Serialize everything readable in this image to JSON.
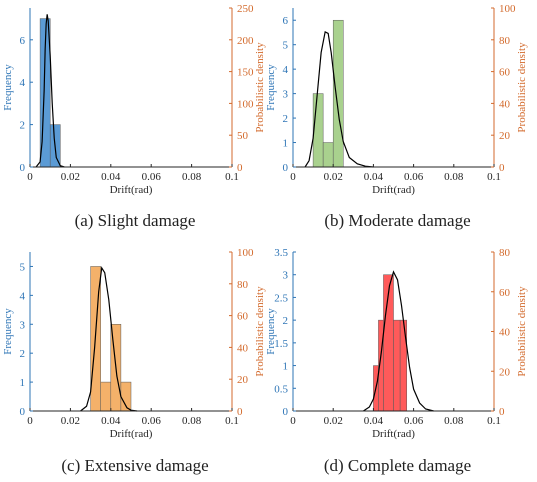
{
  "colors": {
    "left_axis": "#2e75b6",
    "right_axis": "#d36a2c",
    "curve": "#000000",
    "axis": "#262626"
  },
  "chart_data": [
    {
      "type": "bar",
      "caption": "(a) Slight damage",
      "xlabel": "Drift(rad)",
      "ylabel": "Frequency",
      "ylabel_right": "Probabilistic density",
      "xlim": [
        0,
        0.1
      ],
      "ylim": [
        0,
        7.5
      ],
      "ylim_right": [
        0,
        250
      ],
      "xticks": [
        "0",
        "0.02",
        "0.04",
        "0.06",
        "0.08",
        "0.1"
      ],
      "yticks": [
        "0",
        "2",
        "4",
        "6"
      ],
      "yticks_right": [
        "0",
        "50",
        "100",
        "150",
        "200",
        "250"
      ],
      "bar_color": "#5b9bd5",
      "bin_edges": [
        0.005,
        0.01,
        0.015
      ],
      "values": [
        7,
        2
      ],
      "pdf_curve": {
        "x": [
          0.003,
          0.005,
          0.006,
          0.007,
          0.0075,
          0.008,
          0.0085,
          0.009,
          0.01,
          0.011,
          0.012,
          0.013,
          0.015,
          0.017
        ],
        "y": [
          0,
          8,
          40,
          120,
          185,
          225,
          240,
          230,
          175,
          100,
          45,
          15,
          2,
          0
        ]
      }
    },
    {
      "type": "bar",
      "caption": "(b) Moderate damage",
      "xlabel": "Drift(rad)",
      "ylabel": "Frequency",
      "ylabel_right": "Probabilistic density",
      "xlim": [
        0,
        0.1
      ],
      "ylim": [
        0,
        6.5
      ],
      "ylim_right": [
        0,
        100
      ],
      "xticks": [
        "0",
        "0.02",
        "0.04",
        "0.06",
        "0.08",
        "0.1"
      ],
      "yticks": [
        "0",
        "1",
        "2",
        "3",
        "4",
        "5",
        "6"
      ],
      "yticks_right": [
        "0",
        "20",
        "40",
        "60",
        "80",
        "100"
      ],
      "bar_color": "#a9d18e",
      "bin_edges": [
        0.01,
        0.015,
        0.02,
        0.025
      ],
      "values": [
        3,
        1,
        6
      ],
      "pdf_curve": {
        "x": [
          0.006,
          0.008,
          0.01,
          0.012,
          0.014,
          0.016,
          0.0175,
          0.019,
          0.021,
          0.023,
          0.025,
          0.028,
          0.032,
          0.036,
          0.04
        ],
        "y": [
          0,
          4,
          18,
          45,
          72,
          85,
          84,
          72,
          50,
          30,
          16,
          6,
          2,
          0.5,
          0
        ]
      }
    },
    {
      "type": "bar",
      "caption": "(c) Extensive damage",
      "xlabel": "Drift(rad)",
      "ylabel": "Frequency",
      "ylabel_right": "Probabilistic density",
      "xlim": [
        0,
        0.1
      ],
      "ylim": [
        0,
        5.5
      ],
      "ylim_right": [
        0,
        100
      ],
      "xticks": [
        "0",
        "0.02",
        "0.04",
        "0.06",
        "0.08",
        "0.1"
      ],
      "yticks": [
        "0",
        "1",
        "2",
        "3",
        "4",
        "5"
      ],
      "yticks_right": [
        "0",
        "20",
        "40",
        "60",
        "80",
        "100"
      ],
      "bar_color": "#f4b16a",
      "bin_edges": [
        0.03,
        0.035,
        0.04,
        0.045,
        0.05
      ],
      "values": [
        5,
        1,
        3,
        1
      ],
      "pdf_curve": {
        "x": [
          0.025,
          0.028,
          0.03,
          0.032,
          0.034,
          0.0355,
          0.037,
          0.039,
          0.041,
          0.043,
          0.045,
          0.048,
          0.05,
          0.053
        ],
        "y": [
          0,
          3,
          12,
          40,
          75,
          90,
          87,
          70,
          45,
          22,
          9,
          2,
          0.5,
          0
        ]
      }
    },
    {
      "type": "bar",
      "caption": "(d) Complete damage",
      "xlabel": "Drift(rad)",
      "ylabel": "Frequency",
      "ylabel_right": "Probabilistic density",
      "xlim": [
        0,
        0.1
      ],
      "ylim": [
        0,
        3.5
      ],
      "ylim_right": [
        0,
        80
      ],
      "xticks": [
        "0",
        "0.02",
        "0.04",
        "0.06",
        "0.08",
        "0.1"
      ],
      "yticks": [
        "0",
        "0.5",
        "1",
        "1.5",
        "2",
        "2.5",
        "3",
        "3.5"
      ],
      "yticks_right": [
        "0",
        "20",
        "40",
        "60",
        "80"
      ],
      "bar_color": "#ff5a5a",
      "bin_edges": [
        0.04,
        0.0425,
        0.045,
        0.05,
        0.0533,
        0.0566
      ],
      "values": [
        1,
        2,
        3,
        2,
        2
      ],
      "pdf_curve": {
        "x": [
          0.035,
          0.038,
          0.04,
          0.042,
          0.044,
          0.046,
          0.048,
          0.05,
          0.052,
          0.054,
          0.056,
          0.058,
          0.06,
          0.063,
          0.066,
          0.07
        ],
        "y": [
          0,
          2,
          6,
          15,
          30,
          48,
          63,
          70,
          66,
          53,
          37,
          22,
          11,
          4,
          1,
          0
        ]
      }
    }
  ]
}
